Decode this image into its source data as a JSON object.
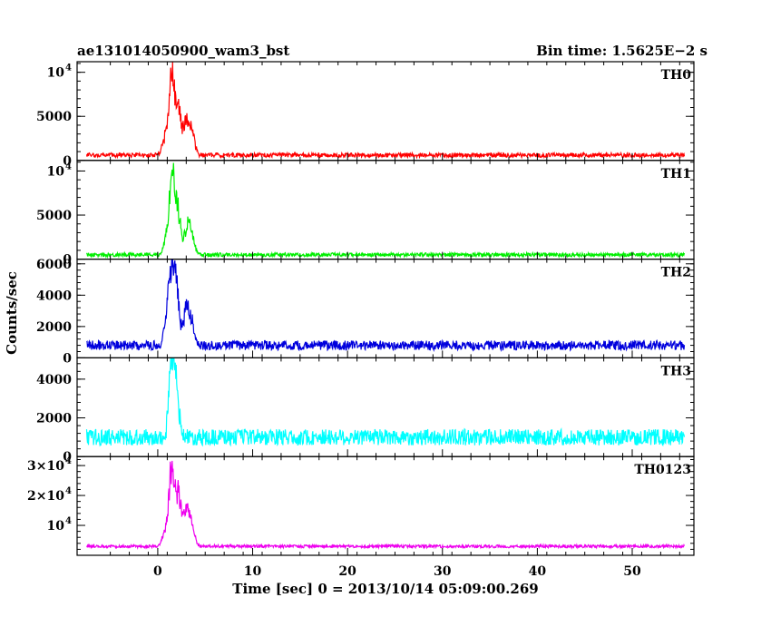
{
  "header": {
    "title": "ae131014050900_wam3_bst",
    "bin_time": "Bin time: 1.5625E−2 s"
  },
  "axes": {
    "ylabel": "Counts/sec",
    "xlabel": "Time [sec] 0 = 2013/10/14 05:09:00.269"
  },
  "chart_data": {
    "type": "line",
    "title": "ae131014050900_wam3_bst",
    "xlabel": "Time [sec] 0 = 2013/10/14 05:09:00.269",
    "ylabel": "Counts/sec",
    "xlim": [
      -8.5,
      56.5
    ],
    "x_ticks": [
      0,
      10,
      20,
      30,
      40,
      50
    ],
    "x_tick_labels": [
      "0",
      "10",
      "20",
      "30",
      "40",
      "50"
    ],
    "x_range_data": [
      -7.5,
      55.5
    ],
    "grid": false,
    "panels": [
      {
        "name": "TH0",
        "color": "#ff0000",
        "ylim": [
          0,
          11200
        ],
        "y_ticks": [
          {
            "value": 0,
            "label": "0"
          },
          {
            "value": 5000,
            "label": "5000"
          },
          {
            "value": 10000,
            "label": "10",
            "exp": "4"
          }
        ],
        "baseline": 600,
        "noise": 250,
        "bumps": [
          [
            1.5,
            11000
          ],
          [
            2.2,
            6000
          ],
          [
            3.0,
            4500
          ],
          [
            3.6,
            3000
          ],
          [
            0.8,
            2500
          ]
        ]
      },
      {
        "name": "TH1",
        "color": "#00ee00",
        "ylim": [
          0,
          11200
        ],
        "y_ticks": [
          {
            "value": 0,
            "label": "0"
          },
          {
            "value": 5000,
            "label": "5000"
          },
          {
            "value": 10000,
            "label": "10",
            "exp": "4"
          }
        ],
        "baseline": 500,
        "noise": 220,
        "bumps": [
          [
            1.5,
            10000
          ],
          [
            2.1,
            6000
          ],
          [
            3.1,
            4000
          ],
          [
            3.6,
            2500
          ],
          [
            0.9,
            2000
          ]
        ]
      },
      {
        "name": "TH2",
        "color": "#0000dd",
        "ylim": [
          0,
          6300
        ],
        "y_ticks": [
          {
            "value": 0,
            "label": "0"
          },
          {
            "value": 2000,
            "label": "2000"
          },
          {
            "value": 4000,
            "label": "4000"
          },
          {
            "value": 6000,
            "label": "6000"
          }
        ],
        "baseline": 800,
        "noise": 300,
        "bumps": [
          [
            1.5,
            6000
          ],
          [
            2.0,
            3500
          ],
          [
            3.0,
            2800
          ],
          [
            3.6,
            1800
          ],
          [
            1.0,
            2000
          ]
        ]
      },
      {
        "name": "TH3",
        "color": "#00ffff",
        "ylim": [
          0,
          5100
        ],
        "y_ticks": [
          {
            "value": 0,
            "label": "0"
          },
          {
            "value": 2000,
            "label": "2000"
          },
          {
            "value": 4000,
            "label": "4000"
          }
        ],
        "baseline": 1000,
        "noise": 420,
        "bumps": [
          [
            1.5,
            5000
          ],
          [
            2.0,
            2300
          ]
        ]
      },
      {
        "name": "TH0123",
        "color": "#ee00ee",
        "ylim": [
          0,
          33000
        ],
        "y_ticks": [
          {
            "value": 10000,
            "label": "10",
            "exp": "4"
          },
          {
            "value": 20000,
            "label": "2×10",
            "exp": "4"
          },
          {
            "value": 30000,
            "label": "3×10",
            "exp": "4"
          }
        ],
        "baseline": 3000,
        "noise": 500,
        "bumps": [
          [
            1.5,
            32000
          ],
          [
            2.2,
            19000
          ],
          [
            3.0,
            14000
          ],
          [
            3.6,
            9000
          ],
          [
            0.8,
            6000
          ]
        ]
      }
    ]
  }
}
